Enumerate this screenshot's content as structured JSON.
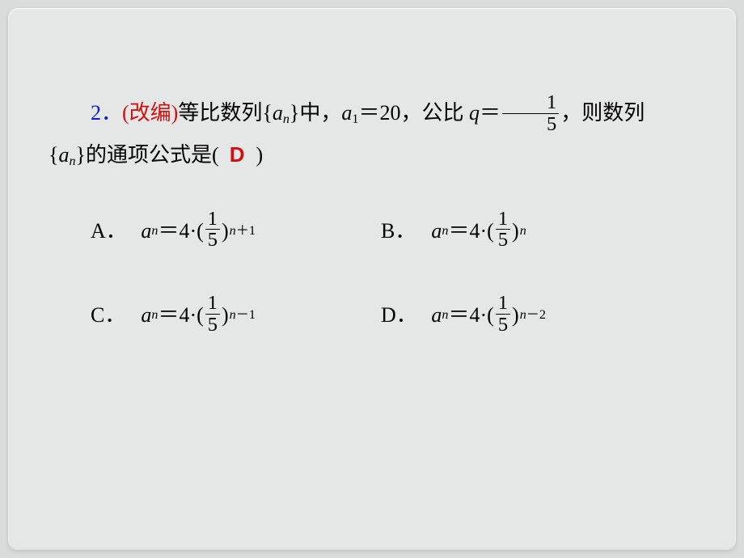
{
  "colors": {
    "page_bg": "#e4e7e6",
    "outer_bg": "#d9dcdb",
    "text": "#000000",
    "number": "#0a1bd0",
    "tag": "#d01010",
    "answer": "#d01010"
  },
  "question": {
    "number": "2．",
    "tag": "(改编)",
    "text_before_a1": "等比数列{",
    "an": "a",
    "an_sub": "n",
    "text_after_an": "}中，",
    "a1_var": "a",
    "a1_sub": "1",
    "a1_eq": "＝20，公比 ",
    "q_var": "q",
    "q_eq": "＝",
    "q_frac_num": "1",
    "q_frac_den": "5",
    "after_frac": "，则数列",
    "line2_open": "{",
    "line2_var": "a",
    "line2_sub": "n",
    "line2_close": "}的通项公式是(",
    "line2_end": ")",
    "answer": "D"
  },
  "formula_common": {
    "lhs_var": "a",
    "lhs_sub": "n",
    "eq4": "＝4·(",
    "frac_num": "1",
    "frac_den": "5",
    "close": ")"
  },
  "choices": {
    "A": {
      "label": "A．",
      "exp_var": "n",
      "exp_op": "＋",
      "exp_num": "1"
    },
    "B": {
      "label": "B．",
      "exp_var": "n"
    },
    "C": {
      "label": "C．",
      "exp_var": "n",
      "exp_op": "－",
      "exp_num": "1"
    },
    "D": {
      "label": "D．",
      "exp_var": "n",
      "exp_op": "－",
      "exp_num": "2"
    }
  }
}
